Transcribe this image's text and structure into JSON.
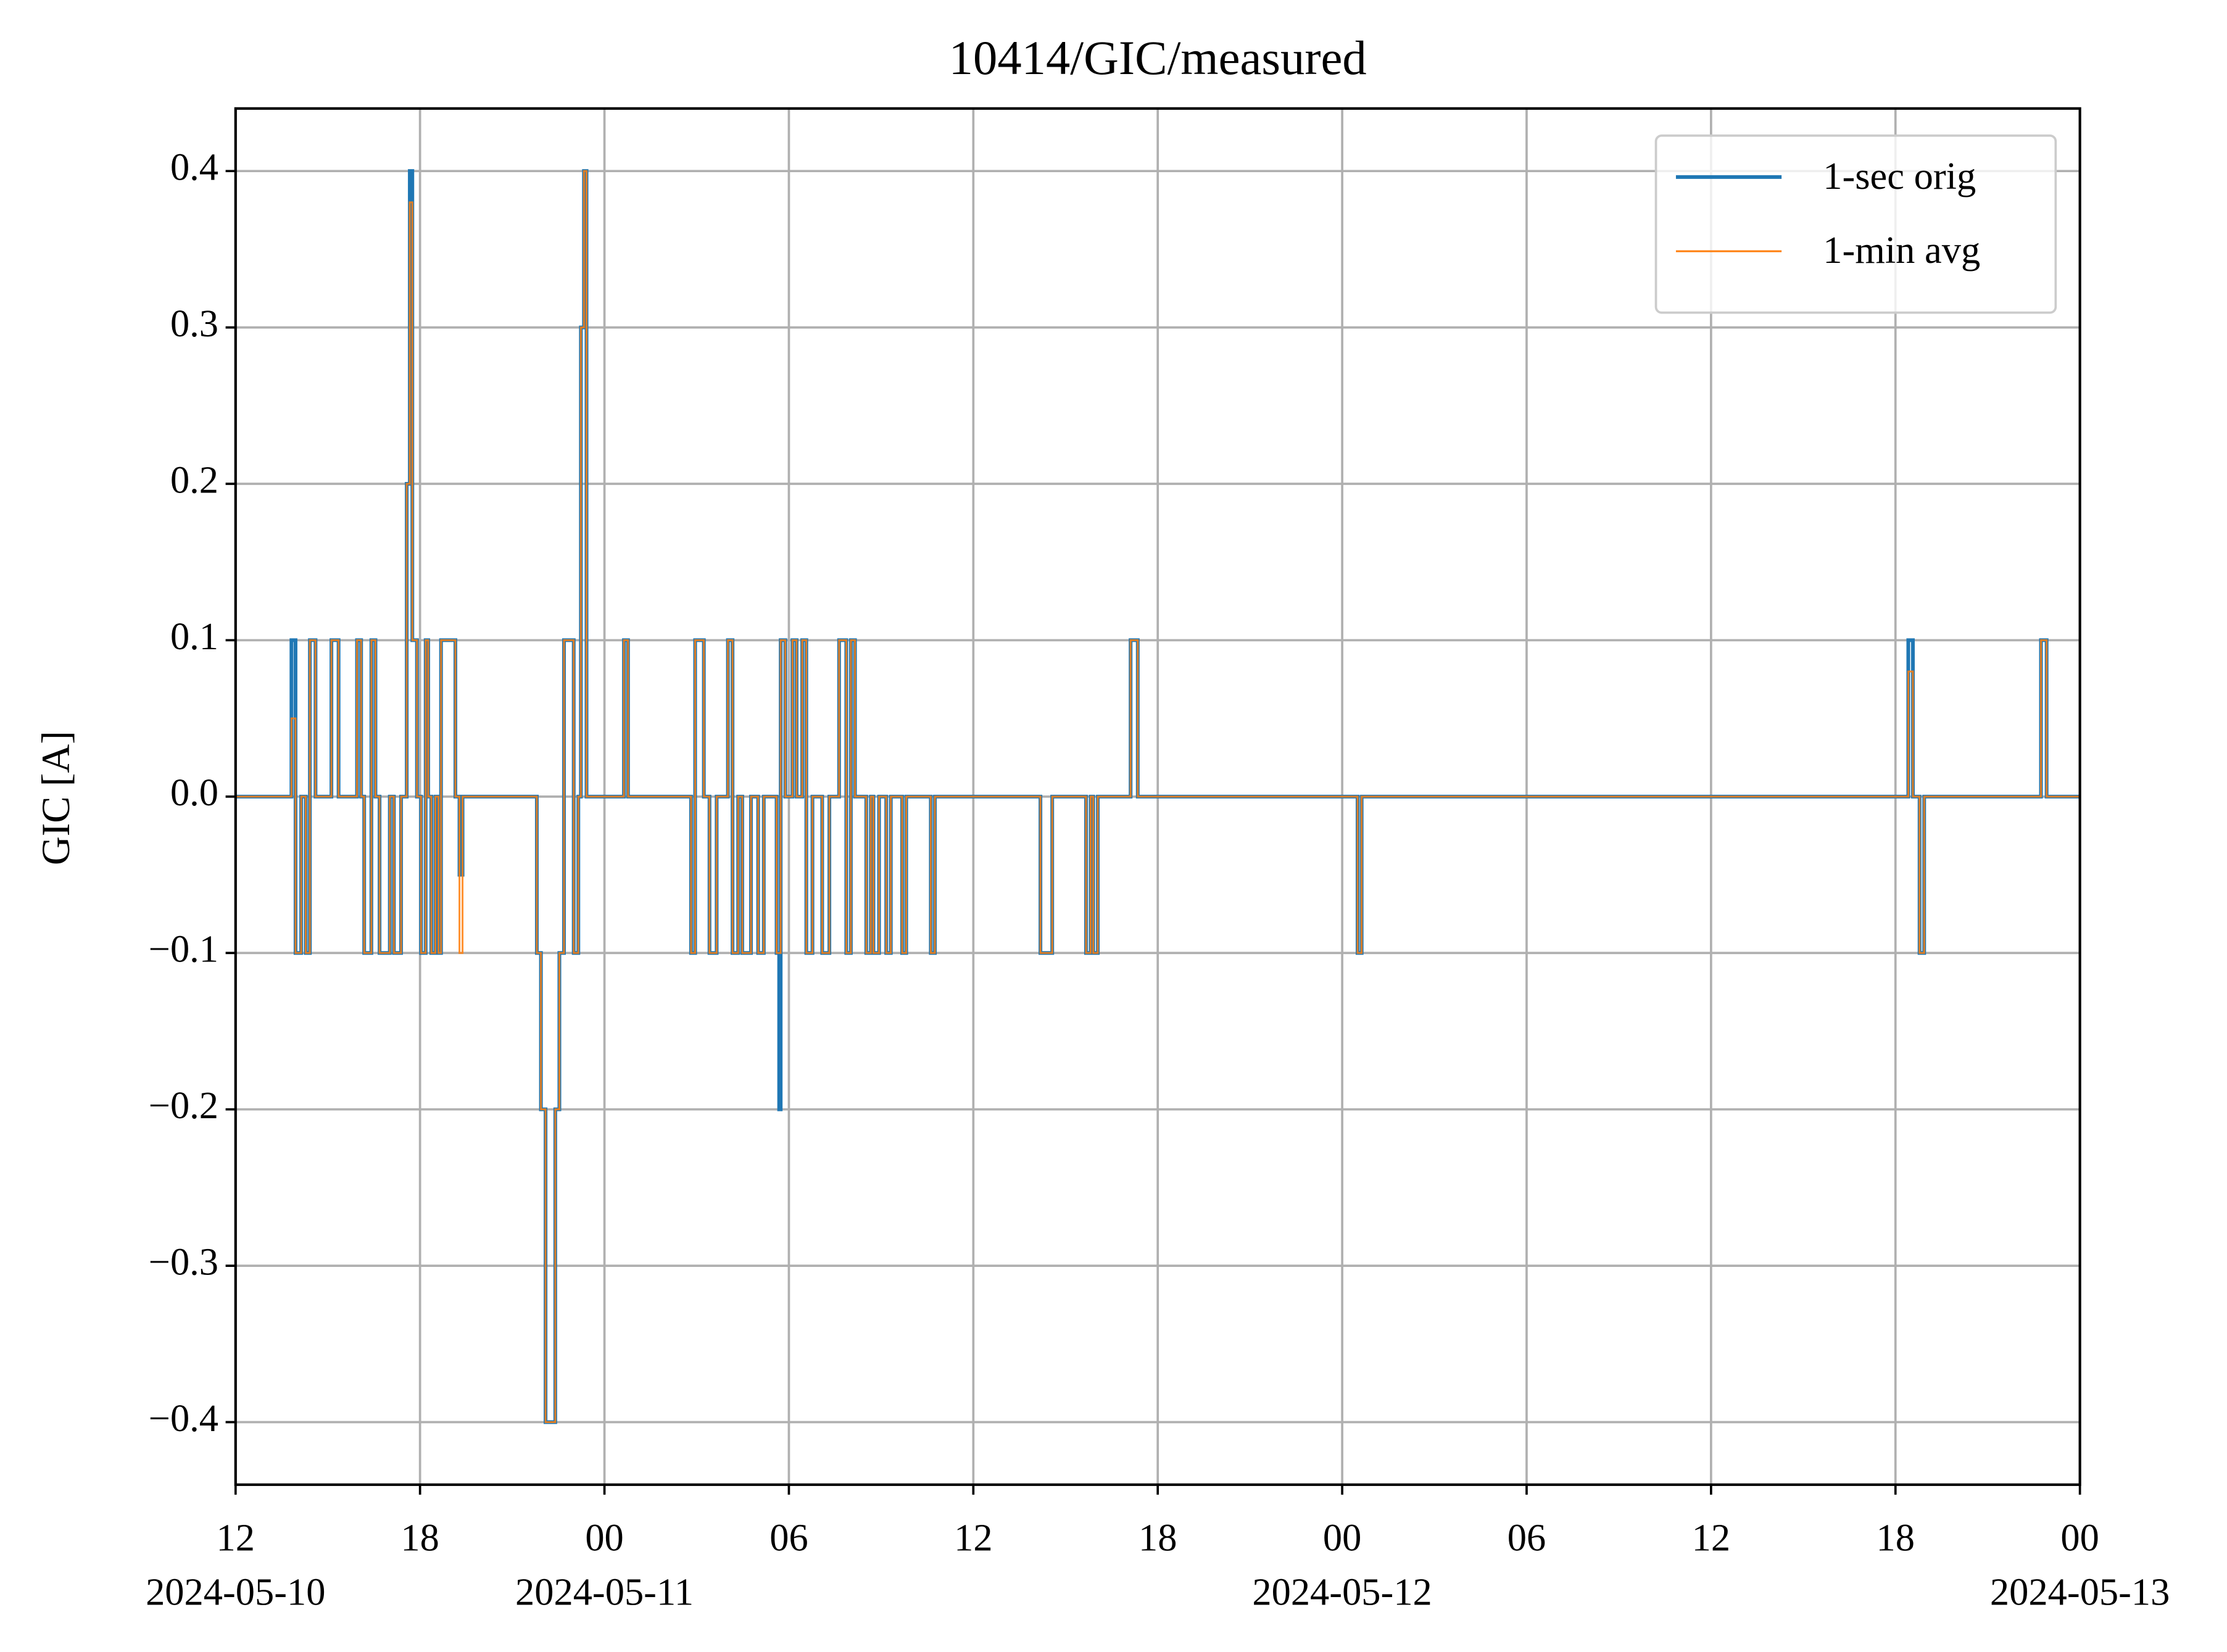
{
  "chart_data": {
    "type": "line",
    "drawstyle": "steps-post",
    "title": "10414/GIC/measured",
    "y_label": "GIC [A]",
    "x": [
      "2024-05-10 12:00",
      "2024-05-10 13:49",
      "2024-05-10 13:57",
      "2024-05-10 14:08",
      "2024-05-10 14:17",
      "2024-05-10 14:25",
      "2024-05-10 14:36",
      "2024-05-10 15:07",
      "2024-05-10 15:21",
      "2024-05-10 15:57",
      "2024-05-10 16:05",
      "2024-05-10 16:11",
      "2024-05-10 16:25",
      "2024-05-10 16:33",
      "2024-05-10 16:41",
      "2024-05-10 17:01",
      "2024-05-10 17:09",
      "2024-05-10 17:23",
      "2024-05-10 17:34",
      "2024-05-10 17:40",
      "2024-05-10 17:45",
      "2024-05-10 17:54",
      "2024-05-10 18:02",
      "2024-05-10 18:11",
      "2024-05-10 18:16",
      "2024-05-10 18:22",
      "2024-05-10 18:30",
      "2024-05-10 18:36",
      "2024-05-10 18:41",
      "2024-05-10 19:09",
      "2024-05-10 19:17",
      "2024-05-10 19:23",
      "2024-05-10 21:48",
      "2024-05-10 21:56",
      "2024-05-10 22:05",
      "2024-05-10 22:24",
      "2024-05-10 22:32",
      "2024-05-10 22:41",
      "2024-05-10 23:00",
      "2024-05-10 23:09",
      "2024-05-10 23:14",
      "2024-05-10 23:20",
      "2024-05-10 23:25",
      "2024-05-11 00:38",
      "2024-05-11 00:46",
      "2024-05-11 02:49",
      "2024-05-11 02:57",
      "2024-05-11 03:14",
      "2024-05-11 03:25",
      "2024-05-11 03:39",
      "2024-05-11 04:01",
      "2024-05-11 04:10",
      "2024-05-11 04:21",
      "2024-05-11 04:29",
      "2024-05-11 04:46",
      "2024-05-11 05:00",
      "2024-05-11 05:11",
      "2024-05-11 05:36",
      "2024-05-11 05:41",
      "2024-05-11 05:44",
      "2024-05-11 05:53",
      "2024-05-11 06:07",
      "2024-05-11 06:15",
      "2024-05-11 06:26",
      "2024-05-11 06:34",
      "2024-05-11 06:46",
      "2024-05-11 07:05",
      "2024-05-11 07:19",
      "2024-05-11 07:38",
      "2024-05-11 07:52",
      "2024-05-11 08:01",
      "2024-05-11 08:09",
      "2024-05-11 08:31",
      "2024-05-11 08:40",
      "2024-05-11 08:45",
      "2024-05-11 08:56",
      "2024-05-11 09:10",
      "2024-05-11 09:19",
      "2024-05-11 09:41",
      "2024-05-11 09:49",
      "2024-05-11 10:37",
      "2024-05-11 10:45",
      "2024-05-11 14:11",
      "2024-05-11 14:34",
      "2024-05-11 15:40",
      "2024-05-11 15:49",
      "2024-05-11 15:54",
      "2024-05-11 16:03",
      "2024-05-11 17:07",
      "2024-05-11 17:21",
      "2024-05-12 00:30",
      "2024-05-12 00:38",
      "2024-05-12 18:25",
      "2024-05-12 18:34",
      "2024-05-12 18:47",
      "2024-05-12 18:56",
      "2024-05-12 22:44",
      "2024-05-12 22:55",
      "2024-05-13 00:00"
    ],
    "series": [
      {
        "name": "1-sec orig",
        "color": "#1f77b4",
        "values": [
          0,
          0.1,
          -0.1,
          0,
          -0.1,
          0.1,
          0,
          0.1,
          0,
          0.1,
          0,
          -0.1,
          0.1,
          0,
          -0.1,
          0,
          -0.1,
          0,
          0.2,
          0.4,
          0.1,
          0,
          -0.1,
          0.1,
          0,
          -0.1,
          0,
          -0.1,
          0.1,
          0,
          -0.05,
          0,
          -0.1,
          -0.2,
          -0.4,
          -0.2,
          -0.1,
          0.1,
          -0.1,
          0,
          0.3,
          0.4,
          0,
          0.1,
          0,
          -0.1,
          0.1,
          0,
          -0.1,
          0,
          0.1,
          -0.1,
          0,
          -0.1,
          0,
          -0.1,
          0,
          -0.1,
          -0.2,
          0.1,
          0,
          0.1,
          0,
          0.1,
          -0.1,
          0,
          -0.1,
          0,
          0.1,
          -0.1,
          0.1,
          0,
          -0.1,
          0,
          -0.1,
          0,
          -0.1,
          0,
          -0.1,
          0,
          -0.1,
          0,
          -0.1,
          0,
          -0.1,
          0,
          -0.1,
          0,
          0.1,
          0,
          -0.1,
          0,
          0.1,
          0,
          -0.1,
          0,
          0.1,
          0,
          0
        ]
      },
      {
        "name": "1-min avg",
        "color": "#ff7f0e",
        "values": [
          0,
          0.05,
          -0.1,
          0,
          -0.1,
          0.1,
          0,
          0.1,
          0,
          0.1,
          0,
          -0.1,
          0.1,
          0,
          -0.1,
          0,
          -0.1,
          0,
          0.2,
          0.38,
          0.1,
          0,
          -0.1,
          0.1,
          0,
          -0.1,
          0,
          -0.1,
          0.1,
          0,
          -0.1,
          0,
          -0.1,
          -0.2,
          -0.4,
          -0.2,
          -0.1,
          0.1,
          -0.1,
          0,
          0.3,
          0.4,
          0,
          0.1,
          0,
          -0.1,
          0.1,
          0,
          -0.1,
          0,
          0.1,
          -0.1,
          0,
          -0.1,
          0,
          -0.1,
          0,
          -0.1,
          -0.1,
          0.1,
          0,
          0.1,
          0,
          0.1,
          -0.1,
          0,
          -0.1,
          0,
          0.1,
          -0.1,
          0.1,
          0,
          -0.1,
          0,
          -0.1,
          0,
          -0.1,
          0,
          -0.1,
          0,
          -0.1,
          0,
          -0.1,
          0,
          -0.1,
          0,
          -0.1,
          0,
          0.1,
          0,
          -0.1,
          0,
          0.08,
          0,
          -0.1,
          0,
          0.1,
          0,
          0
        ]
      }
    ],
    "xlim": [
      "2024-05-10 12:00",
      "2024-05-13 00:00"
    ],
    "xticks": [
      {
        "value": "2024-05-10 12:00",
        "label": "12",
        "date_label": "2024-05-10"
      },
      {
        "value": "2024-05-10 18:00",
        "label": "18"
      },
      {
        "value": "2024-05-11 00:00",
        "label": "00",
        "date_label": "2024-05-11"
      },
      {
        "value": "2024-05-11 06:00",
        "label": "06"
      },
      {
        "value": "2024-05-11 12:00",
        "label": "12"
      },
      {
        "value": "2024-05-11 18:00",
        "label": "18"
      },
      {
        "value": "2024-05-12 00:00",
        "label": "00",
        "date_label": "2024-05-12"
      },
      {
        "value": "2024-05-12 06:00",
        "label": "06"
      },
      {
        "value": "2024-05-12 12:00",
        "label": "12"
      },
      {
        "value": "2024-05-12 18:00",
        "label": "18"
      },
      {
        "value": "2024-05-13 00:00",
        "label": "00",
        "date_label": "2024-05-13"
      }
    ],
    "ylim": [
      -0.44,
      0.44
    ],
    "yticks": [
      {
        "value": -0.4,
        "label": "−0.4"
      },
      {
        "value": -0.3,
        "label": "−0.3"
      },
      {
        "value": -0.2,
        "label": "−0.2"
      },
      {
        "value": -0.1,
        "label": "−0.1"
      },
      {
        "value": 0,
        "label": "0.0"
      },
      0.1,
      0.2,
      0.3,
      0.4
    ],
    "grid": true,
    "legend": "upper right"
  }
}
